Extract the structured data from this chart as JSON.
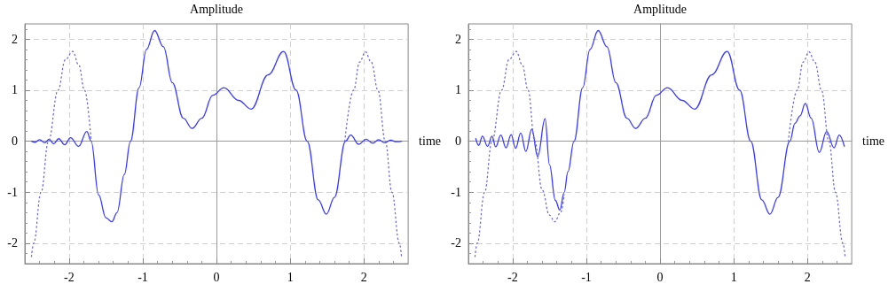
{
  "chart_data": [
    {
      "type": "line",
      "ylabel": "Amplitude",
      "xlabel": "time",
      "xlim": [
        -2.6,
        2.6
      ],
      "ylim": [
        -2.4,
        2.3
      ],
      "xticks": [
        -2,
        -1,
        0,
        1,
        2
      ],
      "yticks": [
        -2,
        -1,
        0,
        1,
        2
      ],
      "grid": true,
      "marker": "none",
      "series": [
        {
          "color": "#3a3aff",
          "line_style": "solid",
          "x": [
            -2.51,
            -2.46,
            -2.4,
            -2.33,
            -2.27,
            -2.21,
            -2.14,
            -2.06,
            -1.98,
            -1.87,
            -1.76,
            -1.7,
            -1.6,
            -1.5,
            -1.42,
            -1.35,
            -1.25,
            -1.167,
            -1.05,
            -0.95,
            -0.84,
            -0.72,
            -0.6,
            -0.45,
            -0.33,
            -0.2,
            -0.05,
            0.1,
            0.3,
            0.47,
            0.7,
            0.91,
            1.08,
            1.23,
            1.38,
            1.49,
            1.6,
            1.75,
            1.82,
            1.93,
            2.03,
            2.12,
            2.2,
            2.28,
            2.36,
            2.44,
            2.51
          ],
          "values": [
            0,
            -0.02,
            0.03,
            -0.03,
            0.04,
            -0.05,
            0.05,
            -0.07,
            0.07,
            -0.1,
            0.19,
            0,
            -1.05,
            -1.5,
            -1.58,
            -1.4,
            -0.65,
            0,
            1.05,
            1.8,
            2.17,
            1.85,
            1.15,
            0.45,
            0.25,
            0.45,
            0.9,
            1.05,
            0.8,
            0.63,
            1.3,
            1.76,
            1.0,
            0,
            -1.15,
            -1.43,
            -1.1,
            0,
            0.12,
            -0.06,
            0.04,
            -0.04,
            0.03,
            -0.03,
            0.02,
            -0.01,
            0
          ]
        },
        {
          "color": "#6b6bd6",
          "line_style": "dotted",
          "x": [
            -2.51,
            -2.48,
            -2.38,
            -2.28,
            -2.15,
            -2.05,
            -1.95,
            -1.87,
            -1.79,
            -1.7,
            0,
            1.74,
            1.86,
            1.94,
            2.02,
            2.1,
            2.19,
            2.29,
            2.38,
            2.48,
            2.51
          ],
          "values": [
            -2.26,
            -2,
            -1,
            0,
            1,
            1.6,
            1.76,
            1.5,
            1,
            0,
            null,
            0,
            1,
            1.55,
            1.75,
            1.55,
            1,
            0,
            -1,
            -2,
            -2.26
          ]
        }
      ]
    },
    {
      "type": "line",
      "ylabel": "Amplitude",
      "xlabel": "time",
      "xlim": [
        -2.6,
        2.6
      ],
      "ylim": [
        -2.4,
        2.3
      ],
      "xticks": [
        -2,
        -1,
        0,
        1,
        2
      ],
      "yticks": [
        -2,
        -1,
        0,
        1,
        2
      ],
      "grid": true,
      "marker": "none",
      "series": [
        {
          "color": "#3a3aff",
          "line_style": "solid",
          "x": [
            -2.5,
            -2.46,
            -2.41,
            -2.34,
            -2.28,
            -2.23,
            -2.16,
            -2.09,
            -2.02,
            -1.96,
            -1.89,
            -1.82,
            -1.74,
            -1.66,
            -1.56,
            -1.5,
            -1.42,
            -1.36,
            -1.3,
            -1.25,
            -1.167,
            -1.05,
            -0.95,
            -0.84,
            -0.72,
            -0.6,
            -0.45,
            -0.33,
            -0.2,
            -0.05,
            0.1,
            0.3,
            0.47,
            0.7,
            0.91,
            1.08,
            1.23,
            1.38,
            1.49,
            1.6,
            1.76,
            1.83,
            1.9,
            1.97,
            2.05,
            2.16,
            2.26,
            2.36,
            2.43,
            2.5
          ],
          "values": [
            0.05,
            -0.08,
            0.1,
            -0.1,
            0.1,
            -0.11,
            0.12,
            -0.13,
            0.13,
            -0.14,
            0.16,
            -0.2,
            0.24,
            -0.3,
            0.44,
            -0.46,
            -1.16,
            -1.35,
            -1.0,
            -0.6,
            0,
            1.05,
            1.8,
            2.17,
            1.85,
            1.15,
            0.45,
            0.25,
            0.45,
            0.9,
            1.05,
            0.8,
            0.63,
            1.3,
            1.76,
            1.0,
            0,
            -1.15,
            -1.43,
            -1.1,
            0,
            0.35,
            0.5,
            0.74,
            0.45,
            -0.22,
            0.19,
            -0.13,
            0.12,
            -0.1
          ]
        },
        {
          "color": "#6b6bd6",
          "line_style": "dotted",
          "x": [
            -2.51,
            -2.48,
            -2.38,
            -2.28,
            -2.15,
            -2.05,
            -1.95,
            -1.87,
            -1.79,
            -1.7,
            -1.6,
            -1.5,
            -1.43,
            -1.35,
            -1.3,
            0,
            1.74,
            1.86,
            1.94,
            2.02,
            2.1,
            2.19,
            2.29,
            2.38,
            2.48,
            2.51
          ],
          "values": [
            -2.26,
            -2,
            -1,
            0,
            1,
            1.6,
            1.76,
            1.5,
            1,
            0,
            -0.95,
            -1.45,
            -1.58,
            -1.4,
            -1.05,
            null,
            0,
            1,
            1.55,
            1.75,
            1.55,
            1,
            0,
            -1,
            -2,
            -2.26
          ]
        }
      ]
    }
  ]
}
